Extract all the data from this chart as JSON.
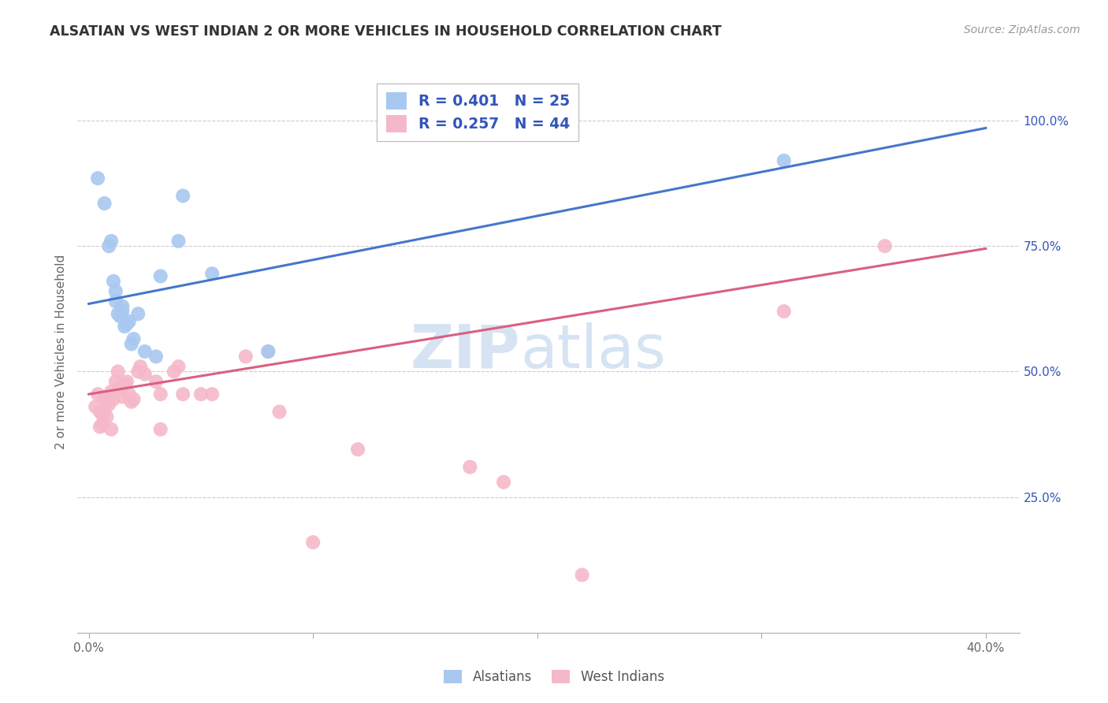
{
  "title": "ALSATIAN VS WEST INDIAN 2 OR MORE VEHICLES IN HOUSEHOLD CORRELATION CHART",
  "source": "Source: ZipAtlas.com",
  "ylabel": "2 or more Vehicles in Household",
  "x_tick_labels": [
    "0.0%",
    "",
    "",
    "",
    "40.0%"
  ],
  "x_tick_values": [
    0.0,
    0.1,
    0.2,
    0.3,
    0.4
  ],
  "y_tick_labels": [
    "25.0%",
    "50.0%",
    "75.0%",
    "100.0%"
  ],
  "y_tick_values": [
    0.25,
    0.5,
    0.75,
    1.0
  ],
  "xlim": [
    -0.005,
    0.415
  ],
  "ylim": [
    -0.02,
    1.1
  ],
  "alsatian_color": "#A8C8F0",
  "west_indian_color": "#F5B8C8",
  "alsatian_line_color": "#4477CC",
  "west_indian_line_color": "#D96080",
  "legend_text_color": "#3355BB",
  "watermark_text_color": "#C5D8EE",
  "alsatian_R": 0.401,
  "alsatian_N": 25,
  "west_indian_R": 0.257,
  "west_indian_N": 44,
  "alsatian_points_x": [
    0.004,
    0.007,
    0.009,
    0.01,
    0.011,
    0.012,
    0.012,
    0.013,
    0.014,
    0.015,
    0.015,
    0.016,
    0.017,
    0.018,
    0.019,
    0.02,
    0.022,
    0.025,
    0.03,
    0.032,
    0.04,
    0.042,
    0.055,
    0.08,
    0.31
  ],
  "alsatian_points_y": [
    0.885,
    0.835,
    0.75,
    0.76,
    0.68,
    0.64,
    0.66,
    0.615,
    0.61,
    0.63,
    0.62,
    0.59,
    0.595,
    0.6,
    0.555,
    0.565,
    0.615,
    0.54,
    0.53,
    0.69,
    0.76,
    0.85,
    0.695,
    0.54,
    0.92
  ],
  "west_indian_points_x": [
    0.003,
    0.004,
    0.005,
    0.005,
    0.006,
    0.006,
    0.007,
    0.007,
    0.008,
    0.008,
    0.009,
    0.01,
    0.01,
    0.011,
    0.012,
    0.013,
    0.014,
    0.015,
    0.016,
    0.017,
    0.018,
    0.019,
    0.02,
    0.022,
    0.023,
    0.025,
    0.03,
    0.032,
    0.032,
    0.038,
    0.04,
    0.042,
    0.05,
    0.055,
    0.07,
    0.08,
    0.085,
    0.1,
    0.12,
    0.17,
    0.185,
    0.22,
    0.31,
    0.355
  ],
  "west_indian_points_y": [
    0.43,
    0.455,
    0.39,
    0.42,
    0.395,
    0.415,
    0.425,
    0.45,
    0.41,
    0.445,
    0.435,
    0.385,
    0.46,
    0.445,
    0.48,
    0.5,
    0.47,
    0.45,
    0.475,
    0.48,
    0.455,
    0.44,
    0.445,
    0.5,
    0.51,
    0.495,
    0.48,
    0.385,
    0.455,
    0.5,
    0.51,
    0.455,
    0.455,
    0.455,
    0.53,
    0.54,
    0.42,
    0.16,
    0.345,
    0.31,
    0.28,
    0.095,
    0.62,
    0.75
  ],
  "als_line_x0": 0.0,
  "als_line_y0": 0.635,
  "als_line_x1": 0.4,
  "als_line_y1": 0.985,
  "wi_line_x0": 0.0,
  "wi_line_y0": 0.455,
  "wi_line_x1": 0.4,
  "wi_line_y1": 0.745
}
